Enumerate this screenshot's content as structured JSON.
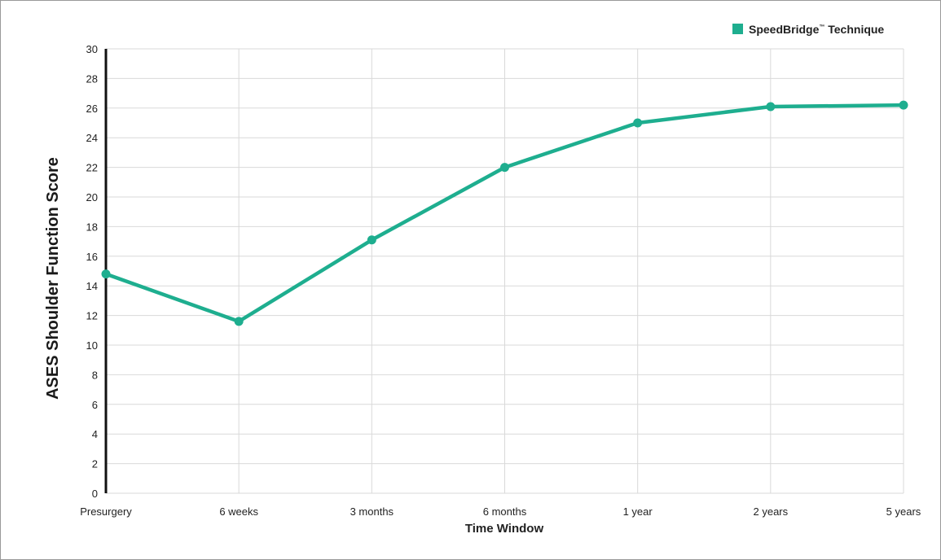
{
  "chart_data": {
    "type": "line",
    "categories": [
      "Presurgery",
      "6 weeks",
      "3 months",
      "6 months",
      "1 year",
      "2 years",
      "5 years"
    ],
    "series": [
      {
        "name": "SpeedBridge™ Technique",
        "name_base": "SpeedBridge",
        "name_mark": "™",
        "name_rest": " Technique",
        "color": "#1eae8f",
        "values": [
          14.8,
          11.6,
          17.1,
          22.0,
          25.0,
          26.1,
          26.2
        ]
      }
    ],
    "xlabel": "Time Window",
    "ylabel": "ASES Shoulder Function Score",
    "ylim": [
      0,
      30
    ],
    "yticks": [
      0,
      2,
      4,
      6,
      8,
      10,
      12,
      14,
      16,
      18,
      20,
      22,
      24,
      26,
      28,
      30
    ],
    "grid": true,
    "legend_position": "top-right"
  }
}
